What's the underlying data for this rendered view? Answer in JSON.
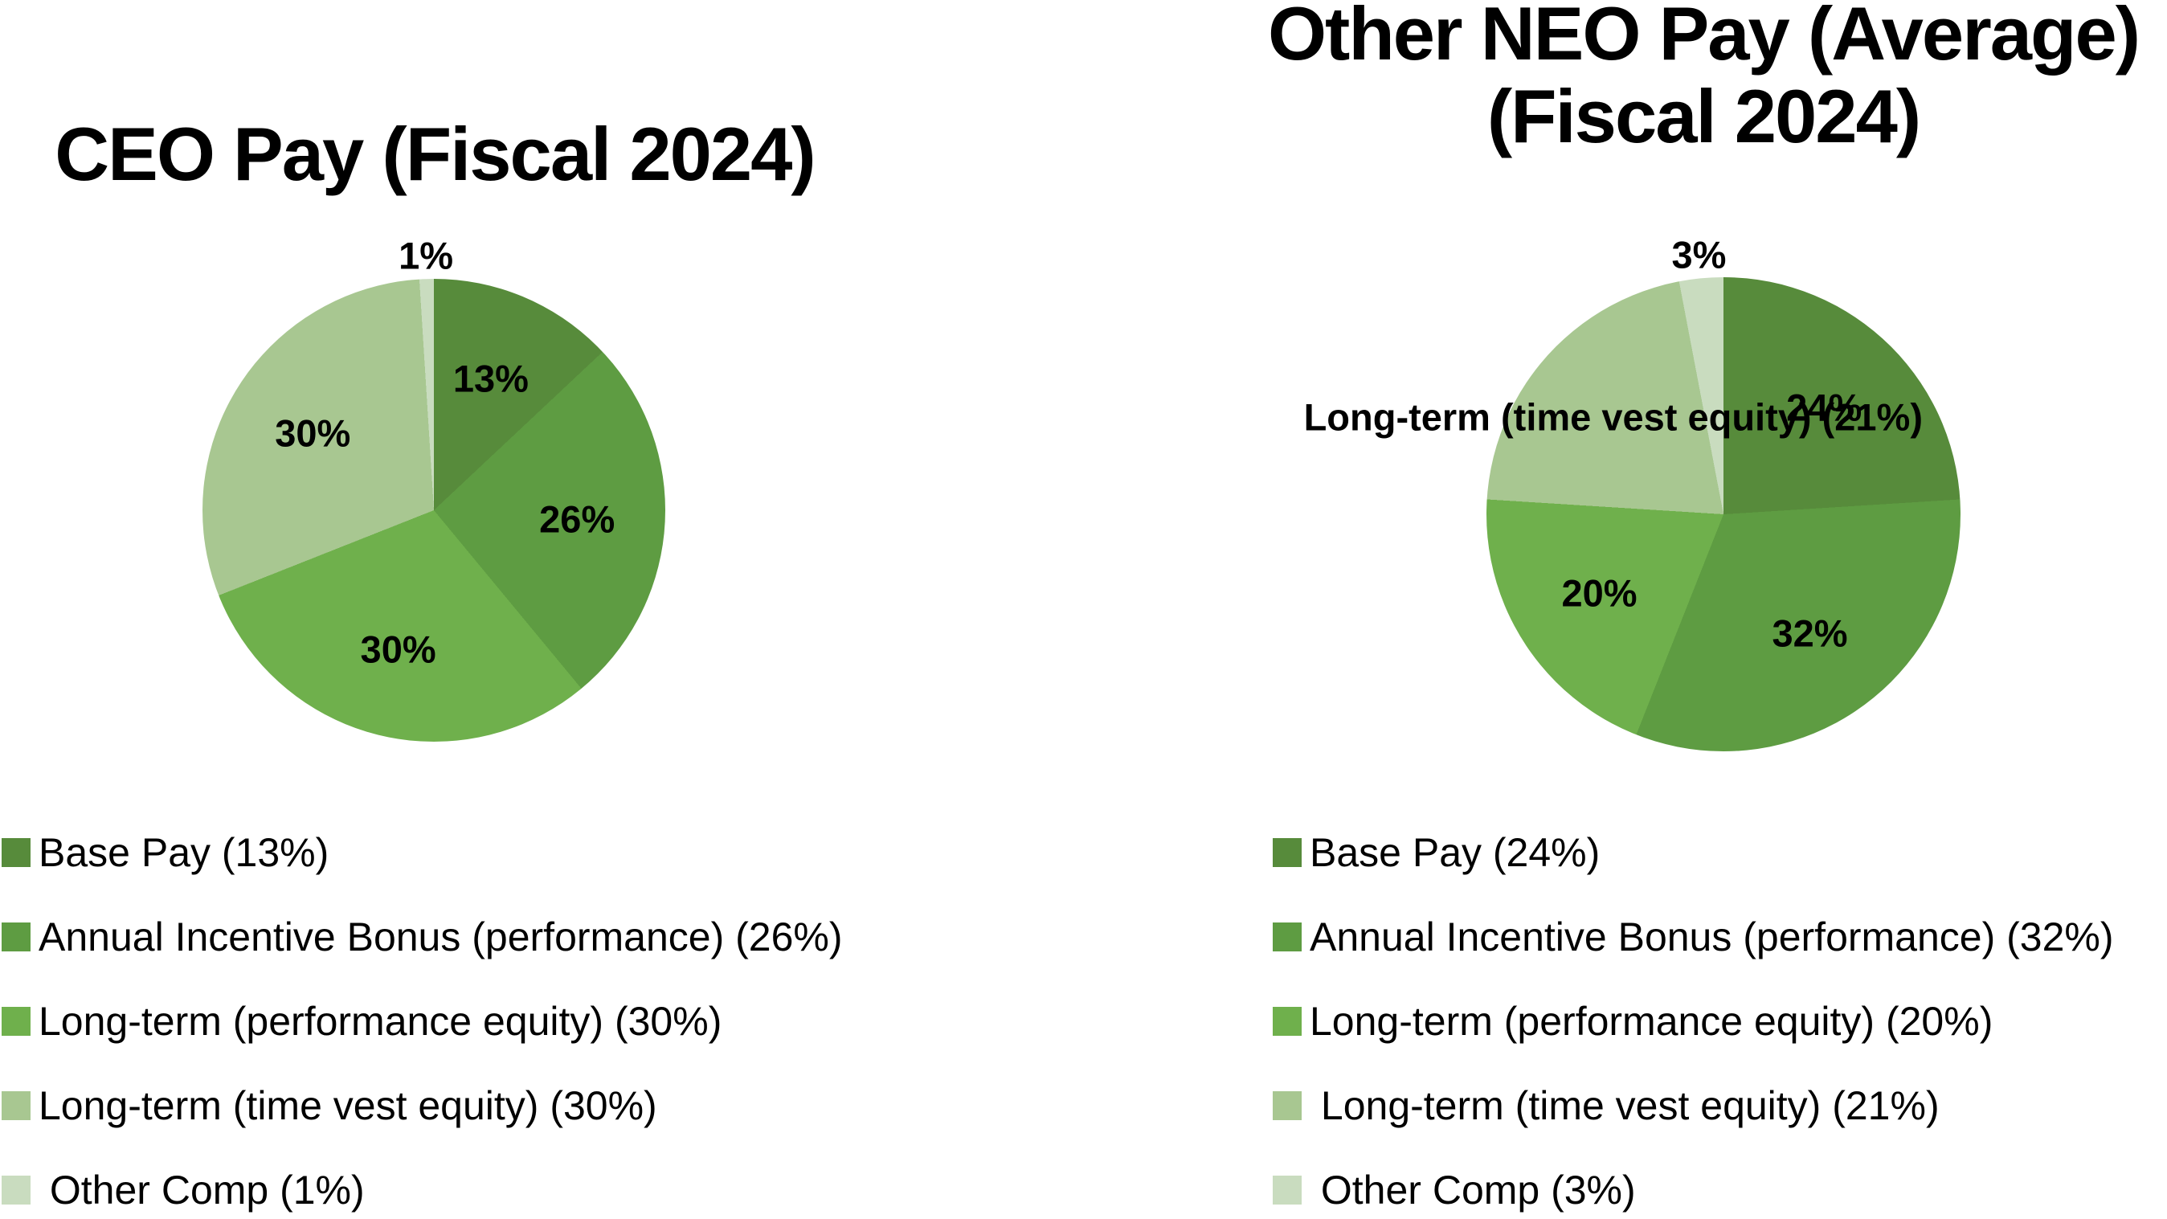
{
  "chart_data": [
    {
      "type": "pie",
      "title": "CEO Pay (Fiscal 2024)",
      "title_display": "CEO Pay (Fiscal 2024)",
      "direction": "clockwise",
      "start_angle_deg": 0,
      "legend_position": "bottom-left",
      "slices": [
        {
          "label": "Base Pay",
          "value": 13,
          "pct_label": "13%",
          "legend_label": "Base Pay (13%)",
          "color": "#578B3B"
        },
        {
          "label": "Annual Incentive Bonus (performance)",
          "value": 26,
          "pct_label": "26%",
          "legend_label": "Annual Incentive Bonus (performance) (26%)",
          "color": "#5E9C42"
        },
        {
          "label": "Long-term (performance equity)",
          "value": 30,
          "pct_label": "30%",
          "legend_label": "Long-term (performance equity) (30%)",
          "color": "#6FB04C"
        },
        {
          "label": "Long-term (time vest equity)",
          "value": 30,
          "pct_label": "30%",
          "legend_label": "Long-term (time vest equity) (30%)",
          "color": "#A8C791"
        },
        {
          "label": "Other Comp",
          "value": 1,
          "pct_label": "1%",
          "legend_label": " Other Comp (1%)",
          "color": "#C9DCBF"
        }
      ]
    },
    {
      "type": "pie",
      "title": "Other NEO Pay (Average) (Fiscal 2024)",
      "title_display": "Other NEO Pay (Average)\n(Fiscal 2024)",
      "direction": "clockwise",
      "start_angle_deg": 0,
      "legend_position": "bottom-left",
      "slices": [
        {
          "label": "Base Pay",
          "value": 24,
          "pct_label": "24%",
          "legend_label": "Base Pay (24%)",
          "color": "#578B3B"
        },
        {
          "label": "Annual Incentive Bonus (performance)",
          "value": 32,
          "pct_label": "32%",
          "legend_label": "Annual Incentive Bonus (performance) (32%)",
          "color": "#5E9C42"
        },
        {
          "label": "Long-term (performance equity)",
          "value": 20,
          "pct_label": "20%",
          "legend_label": "Long-term (performance equity) (20%)",
          "color": "#6FB04C"
        },
        {
          "label": "Long-term (time vest equity)",
          "value": 21,
          "pct_label": " Long-term (time vest equity) (21%)",
          "legend_label": " Long-term (time vest equity) (21%)",
          "color": "#A8C791"
        },
        {
          "label": "Other Comp",
          "value": 3,
          "pct_label": "3%",
          "legend_label": " Other Comp (3%)",
          "color": "#C9DCBF"
        }
      ]
    }
  ],
  "palette": {
    "series_1": "#578B3B",
    "series_2": "#5E9C42",
    "series_3": "#6FB04C",
    "series_4": "#A8C791",
    "series_5": "#C9DCBF",
    "background": "#FFFFFF",
    "text": "#000000"
  }
}
